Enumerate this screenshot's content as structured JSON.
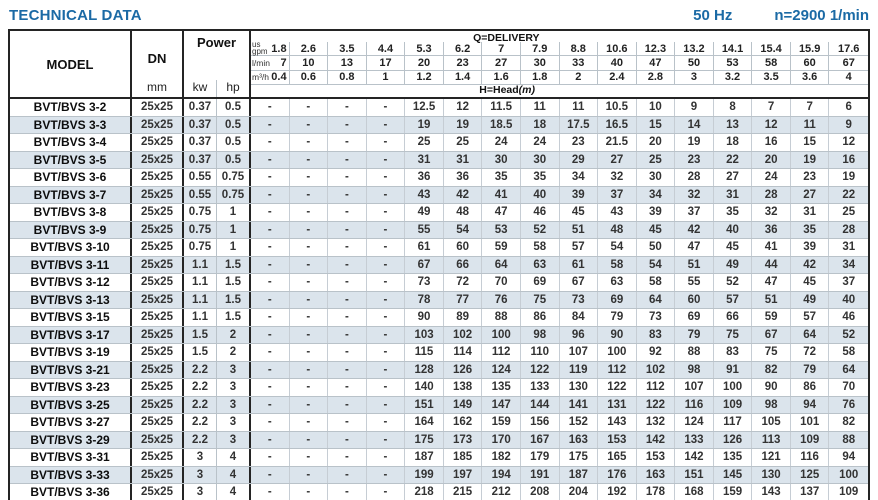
{
  "page": {
    "title": "TECHNICAL DATA",
    "frequency": "50 Hz",
    "speed": "n=2900 1/min"
  },
  "colors": {
    "accent_blue": "#1b6aa5",
    "row_stripe": "#dbe4ec",
    "border_dark": "#242424",
    "border_light": "#b9c2c9"
  },
  "table": {
    "model_header": "MODEL",
    "dn_header": "DN",
    "dn_unit": "mm",
    "power_header": "Power",
    "power_kw": "kw",
    "power_hp": "hp",
    "delivery_label": "Q=DELIVERY",
    "head_label": "H=Head",
    "head_unit": "(m)",
    "flow_units": [
      {
        "label_top": "us",
        "label": "gpm",
        "values": [
          "1.8",
          "2.6",
          "3.5",
          "4.4",
          "5.3",
          "6.2",
          "7",
          "7.9",
          "8.8",
          "10.6",
          "12.3",
          "13.2",
          "14.1",
          "15.4",
          "15.9",
          "17.6"
        ]
      },
      {
        "label": "l/min",
        "values": [
          "7",
          "10",
          "13",
          "17",
          "20",
          "23",
          "27",
          "30",
          "33",
          "40",
          "47",
          "50",
          "53",
          "58",
          "60",
          "67"
        ]
      },
      {
        "label": "m³/h",
        "values": [
          "0.4",
          "0.6",
          "0.8",
          "1",
          "1.2",
          "1.4",
          "1.6",
          "1.8",
          "2",
          "2.4",
          "2.8",
          "3",
          "3.2",
          "3.5",
          "3.6",
          "4"
        ]
      }
    ],
    "rows": [
      {
        "model": "BVT/BVS 3-2",
        "dn": "25x25",
        "kw": "0.37",
        "hp": "0.5",
        "heads": [
          "-",
          "-",
          "-",
          "-",
          "12.5",
          "12",
          "11.5",
          "11",
          "11",
          "10.5",
          "10",
          "9",
          "8",
          "7",
          "7",
          "6"
        ]
      },
      {
        "model": "BVT/BVS 3-3",
        "dn": "25x25",
        "kw": "0.37",
        "hp": "0.5",
        "heads": [
          "-",
          "-",
          "-",
          "-",
          "19",
          "19",
          "18.5",
          "18",
          "17.5",
          "16.5",
          "15",
          "14",
          "13",
          "12",
          "11",
          "9"
        ]
      },
      {
        "model": "BVT/BVS 3-4",
        "dn": "25x25",
        "kw": "0.37",
        "hp": "0.5",
        "heads": [
          "-",
          "-",
          "-",
          "-",
          "25",
          "25",
          "24",
          "24",
          "23",
          "21.5",
          "20",
          "19",
          "18",
          "16",
          "15",
          "12"
        ]
      },
      {
        "model": "BVT/BVS 3-5",
        "dn": "25x25",
        "kw": "0.37",
        "hp": "0.5",
        "heads": [
          "-",
          "-",
          "-",
          "-",
          "31",
          "31",
          "30",
          "30",
          "29",
          "27",
          "25",
          "23",
          "22",
          "20",
          "19",
          "16"
        ]
      },
      {
        "model": "BVT/BVS 3-6",
        "dn": "25x25",
        "kw": "0.55",
        "hp": "0.75",
        "heads": [
          "-",
          "-",
          "-",
          "-",
          "36",
          "36",
          "35",
          "35",
          "34",
          "32",
          "30",
          "28",
          "27",
          "24",
          "23",
          "19"
        ]
      },
      {
        "model": "BVT/BVS 3-7",
        "dn": "25x25",
        "kw": "0.55",
        "hp": "0.75",
        "heads": [
          "-",
          "-",
          "-",
          "-",
          "43",
          "42",
          "41",
          "40",
          "39",
          "37",
          "34",
          "32",
          "31",
          "28",
          "27",
          "22"
        ]
      },
      {
        "model": "BVT/BVS 3-8",
        "dn": "25x25",
        "kw": "0.75",
        "hp": "1",
        "heads": [
          "-",
          "-",
          "-",
          "-",
          "49",
          "48",
          "47",
          "46",
          "45",
          "43",
          "39",
          "37",
          "35",
          "32",
          "31",
          "25"
        ]
      },
      {
        "model": "BVT/BVS 3-9",
        "dn": "25x25",
        "kw": "0.75",
        "hp": "1",
        "heads": [
          "-",
          "-",
          "-",
          "-",
          "55",
          "54",
          "53",
          "52",
          "51",
          "48",
          "45",
          "42",
          "40",
          "36",
          "35",
          "28"
        ]
      },
      {
        "model": "BVT/BVS 3-10",
        "dn": "25x25",
        "kw": "0.75",
        "hp": "1",
        "heads": [
          "-",
          "-",
          "-",
          "-",
          "61",
          "60",
          "59",
          "58",
          "57",
          "54",
          "50",
          "47",
          "45",
          "41",
          "39",
          "31"
        ]
      },
      {
        "model": "BVT/BVS 3-11",
        "dn": "25x25",
        "kw": "1.1",
        "hp": "1.5",
        "heads": [
          "-",
          "-",
          "-",
          "-",
          "67",
          "66",
          "64",
          "63",
          "61",
          "58",
          "54",
          "51",
          "49",
          "44",
          "42",
          "34"
        ]
      },
      {
        "model": "BVT/BVS 3-12",
        "dn": "25x25",
        "kw": "1.1",
        "hp": "1.5",
        "heads": [
          "-",
          "-",
          "-",
          "-",
          "73",
          "72",
          "70",
          "69",
          "67",
          "63",
          "58",
          "55",
          "52",
          "47",
          "45",
          "37"
        ]
      },
      {
        "model": "BVT/BVS 3-13",
        "dn": "25x25",
        "kw": "1.1",
        "hp": "1.5",
        "heads": [
          "-",
          "-",
          "-",
          "-",
          "78",
          "77",
          "76",
          "75",
          "73",
          "69",
          "64",
          "60",
          "57",
          "51",
          "49",
          "40"
        ]
      },
      {
        "model": "BVT/BVS 3-15",
        "dn": "25x25",
        "kw": "1.1",
        "hp": "1.5",
        "heads": [
          "-",
          "-",
          "-",
          "-",
          "90",
          "89",
          "88",
          "86",
          "84",
          "79",
          "73",
          "69",
          "66",
          "59",
          "57",
          "46"
        ]
      },
      {
        "model": "BVT/BVS 3-17",
        "dn": "25x25",
        "kw": "1.5",
        "hp": "2",
        "heads": [
          "-",
          "-",
          "-",
          "-",
          "103",
          "102",
          "100",
          "98",
          "96",
          "90",
          "83",
          "79",
          "75",
          "67",
          "64",
          "52"
        ]
      },
      {
        "model": "BVT/BVS 3-19",
        "dn": "25x25",
        "kw": "1.5",
        "hp": "2",
        "heads": [
          "-",
          "-",
          "-",
          "-",
          "115",
          "114",
          "112",
          "110",
          "107",
          "100",
          "92",
          "88",
          "83",
          "75",
          "72",
          "58"
        ]
      },
      {
        "model": "BVT/BVS 3-21",
        "dn": "25x25",
        "kw": "2.2",
        "hp": "3",
        "heads": [
          "-",
          "-",
          "-",
          "-",
          "128",
          "126",
          "124",
          "122",
          "119",
          "112",
          "102",
          "98",
          "91",
          "82",
          "79",
          "64"
        ]
      },
      {
        "model": "BVT/BVS 3-23",
        "dn": "25x25",
        "kw": "2.2",
        "hp": "3",
        "heads": [
          "-",
          "-",
          "-",
          "-",
          "140",
          "138",
          "135",
          "133",
          "130",
          "122",
          "112",
          "107",
          "100",
          "90",
          "86",
          "70"
        ]
      },
      {
        "model": "BVT/BVS 3-25",
        "dn": "25x25",
        "kw": "2.2",
        "hp": "3",
        "heads": [
          "-",
          "-",
          "-",
          "-",
          "151",
          "149",
          "147",
          "144",
          "141",
          "131",
          "122",
          "116",
          "109",
          "98",
          "94",
          "76"
        ]
      },
      {
        "model": "BVT/BVS 3-27",
        "dn": "25x25",
        "kw": "2.2",
        "hp": "3",
        "heads": [
          "-",
          "-",
          "-",
          "-",
          "164",
          "162",
          "159",
          "156",
          "152",
          "143",
          "132",
          "124",
          "117",
          "105",
          "101",
          "82"
        ]
      },
      {
        "model": "BVT/BVS 3-29",
        "dn": "25x25",
        "kw": "2.2",
        "hp": "3",
        "heads": [
          "-",
          "-",
          "-",
          "-",
          "175",
          "173",
          "170",
          "167",
          "163",
          "153",
          "142",
          "133",
          "126",
          "113",
          "109",
          "88"
        ]
      },
      {
        "model": "BVT/BVS 3-31",
        "dn": "25x25",
        "kw": "3",
        "hp": "4",
        "heads": [
          "-",
          "-",
          "-",
          "-",
          "187",
          "185",
          "182",
          "179",
          "175",
          "165",
          "153",
          "142",
          "135",
          "121",
          "116",
          "94"
        ]
      },
      {
        "model": "BVT/BVS 3-33",
        "dn": "25x25",
        "kw": "3",
        "hp": "4",
        "heads": [
          "-",
          "-",
          "-",
          "-",
          "199",
          "197",
          "194",
          "191",
          "187",
          "176",
          "163",
          "151",
          "145",
          "130",
          "125",
          "100"
        ]
      },
      {
        "model": "BVT/BVS 3-36",
        "dn": "25x25",
        "kw": "3",
        "hp": "4",
        "heads": [
          "-",
          "-",
          "-",
          "-",
          "218",
          "215",
          "212",
          "208",
          "204",
          "192",
          "178",
          "168",
          "159",
          "143",
          "137",
          "109"
        ]
      }
    ]
  }
}
